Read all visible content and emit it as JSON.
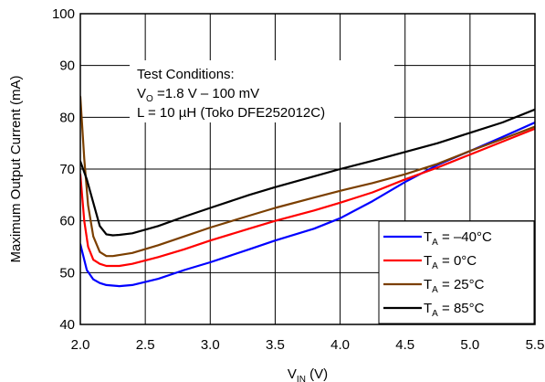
{
  "chart_data": {
    "type": "line",
    "xlabel": {
      "main": "V",
      "sub": "IN",
      "unit": " (V)"
    },
    "ylabel": "Maximum Output Current (mA)",
    "xlim": [
      2.0,
      5.5
    ],
    "ylim": [
      40,
      100
    ],
    "xticks": [
      "2.0",
      "2.5",
      "3.0",
      "3.5",
      "4.0",
      "4.5",
      "5.0",
      "5.5"
    ],
    "yticks": [
      "40",
      "50",
      "60",
      "70",
      "80",
      "90",
      "100"
    ],
    "grid": true,
    "legend_position": "bottom-right",
    "annotation": {
      "line1": "Test Conditions:",
      "line2_main": "V",
      "line2_sub": "O",
      "line2_rest": " =1.8 V – 100 mV",
      "line3": "L = 10 µH (Toko DFE252012C)"
    },
    "series": [
      {
        "name_main": "T",
        "name_sub": "A",
        "name_rest": " = –40°C",
        "color": "#0000ff",
        "x": [
          2.0,
          2.05,
          2.1,
          2.15,
          2.2,
          2.3,
          2.4,
          2.6,
          2.8,
          3.0,
          3.3,
          3.5,
          3.8,
          4.0,
          4.25,
          4.5,
          4.75,
          5.0,
          5.25,
          5.5
        ],
        "y": [
          55.5,
          50.5,
          48.7,
          48.0,
          47.6,
          47.4,
          47.6,
          48.8,
          50.5,
          52.0,
          54.5,
          56.2,
          58.5,
          60.5,
          63.8,
          67.5,
          70.8,
          73.5,
          76.2,
          79.0
        ]
      },
      {
        "name_main": "T",
        "name_sub": "A",
        "name_rest": " = 0°C",
        "color": "#ff0000",
        "x": [
          2.0,
          2.03,
          2.06,
          2.1,
          2.15,
          2.2,
          2.3,
          2.4,
          2.6,
          2.8,
          3.0,
          3.3,
          3.5,
          3.8,
          4.0,
          4.25,
          4.5,
          4.75,
          5.0,
          5.25,
          5.5
        ],
        "y": [
          69.0,
          60.0,
          55.0,
          52.5,
          51.7,
          51.3,
          51.3,
          51.7,
          53.0,
          54.5,
          56.2,
          58.5,
          60.0,
          62.0,
          63.5,
          65.5,
          68.0,
          70.3,
          72.8,
          75.3,
          77.8
        ]
      },
      {
        "name_main": "T",
        "name_sub": "A",
        "name_rest": " = 25°C",
        "color": "#7b3f00",
        "x": [
          2.0,
          2.03,
          2.06,
          2.1,
          2.15,
          2.2,
          2.25,
          2.3,
          2.4,
          2.6,
          2.8,
          3.0,
          3.3,
          3.5,
          3.8,
          4.0,
          4.25,
          4.5,
          4.75,
          5.0,
          5.25,
          5.5
        ],
        "y": [
          84.0,
          72.0,
          63.0,
          57.0,
          54.0,
          53.2,
          53.2,
          53.4,
          53.8,
          55.3,
          57.0,
          58.7,
          61.0,
          62.5,
          64.5,
          65.8,
          67.3,
          69.0,
          71.0,
          73.5,
          75.8,
          78.2
        ]
      },
      {
        "name_main": "T",
        "name_sub": "A",
        "name_rest": " = 85°C",
        "color": "#000000",
        "x": [
          2.0,
          2.05,
          2.1,
          2.15,
          2.2,
          2.25,
          2.3,
          2.4,
          2.6,
          2.8,
          3.0,
          3.3,
          3.5,
          3.8,
          4.0,
          4.25,
          4.5,
          4.75,
          5.0,
          5.25,
          5.5
        ],
        "y": [
          71.5,
          68.0,
          63.5,
          59.0,
          57.4,
          57.2,
          57.3,
          57.6,
          59.0,
          60.8,
          62.5,
          65.0,
          66.5,
          68.6,
          70.0,
          71.6,
          73.3,
          75.0,
          77.0,
          79.0,
          81.5
        ]
      }
    ]
  }
}
